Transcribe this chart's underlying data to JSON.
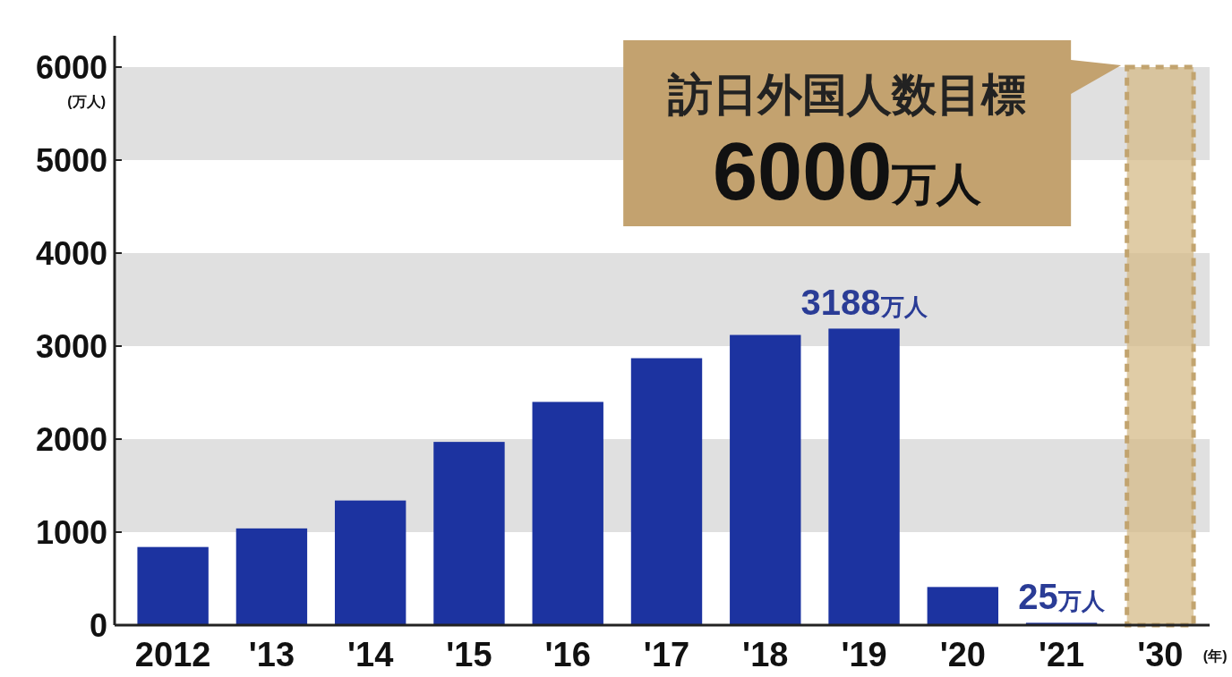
{
  "chart_data": {
    "type": "bar",
    "categories": [
      "2012",
      "'13",
      "'14",
      "'15",
      "'16",
      "'17",
      "'18",
      "'19",
      "'20",
      "'21",
      "'30"
    ],
    "series": [
      {
        "color": "#1c33a0",
        "values": [
          840,
          1040,
          1340,
          1970,
          2400,
          2870,
          3120,
          3188,
          410,
          25,
          null
        ],
        "value_labels": [
          null,
          null,
          null,
          null,
          null,
          null,
          null,
          "3188万人",
          null,
          "25万人",
          null
        ]
      },
      {
        "color": "#d6bb88",
        "line_style": "dashed",
        "values": [
          null,
          null,
          null,
          null,
          null,
          null,
          null,
          null,
          null,
          null,
          6000
        ]
      }
    ],
    "ylabel": "(万人)",
    "xlabel": "(年)",
    "ylim": [
      0,
      6000
    ],
    "yticks": [
      0,
      1000,
      2000,
      3000,
      4000,
      5000,
      6000
    ],
    "bands": [
      {
        "axis": "y",
        "from": 1000,
        "to": 2000,
        "color": "#e0e0e0"
      },
      {
        "axis": "y",
        "from": 3000,
        "to": 4000,
        "color": "#e0e0e0"
      },
      {
        "axis": "y",
        "from": 5000,
        "to": 6000,
        "color": "#e0e0e0"
      }
    ],
    "annotations": [
      {
        "text": "訪日外国人数目標",
        "x": "'30",
        "y": 6000
      },
      "6000万人"
    ],
    "grid": false
  }
}
